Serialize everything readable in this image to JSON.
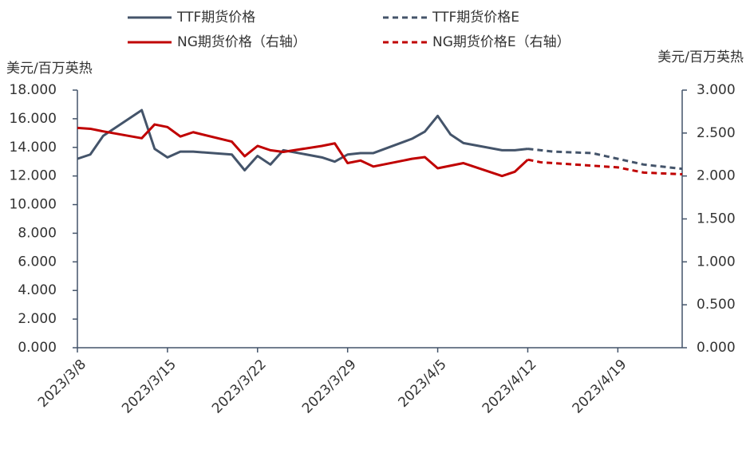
{
  "chart_data": {
    "type": "line",
    "y_label": "美元/百万英热",
    "y2_label": "美元/百万英热",
    "xlim": [
      "2023/3/8",
      "2023/4/24"
    ],
    "xticks": [
      "2023/3/8",
      "2023/3/15",
      "2023/3/22",
      "2023/3/29",
      "2023/4/5",
      "2023/4/12",
      "2023/4/19"
    ],
    "ylim": [
      0,
      18
    ],
    "yticks": [
      {
        "value": 0,
        "label": "0.000"
      },
      {
        "value": 2,
        "label": "2.000"
      },
      {
        "value": 4,
        "label": "4.000"
      },
      {
        "value": 6,
        "label": "6.000"
      },
      {
        "value": 8,
        "label": "8.000"
      },
      {
        "value": 10,
        "label": "10.000"
      },
      {
        "value": 12,
        "label": "12.000"
      },
      {
        "value": 14,
        "label": "14.000"
      },
      {
        "value": 16,
        "label": "16.000"
      },
      {
        "value": 18,
        "label": "18.000"
      }
    ],
    "y2lim": [
      0,
      3
    ],
    "y2ticks": [
      {
        "value": 0,
        "label": "0.000"
      },
      {
        "value": 0.5,
        "label": "0.500"
      },
      {
        "value": 1,
        "label": "1.000"
      },
      {
        "value": 1.5,
        "label": "1.500"
      },
      {
        "value": 2,
        "label": "2.000"
      },
      {
        "value": 2.5,
        "label": "2.500"
      },
      {
        "value": 3,
        "label": "3.000"
      }
    ],
    "series": [
      {
        "name": "TTF期货价格",
        "color": "#44546a",
        "line_style": "solid",
        "x": [
          "2023/3/8",
          "2023/3/9",
          "2023/3/10",
          "2023/3/13",
          "2023/3/14",
          "2023/3/15",
          "2023/3/16",
          "2023/3/17",
          "2023/3/20",
          "2023/3/21",
          "2023/3/22",
          "2023/3/23",
          "2023/3/24",
          "2023/3/27",
          "2023/3/28",
          "2023/3/29",
          "2023/3/30",
          "2023/3/31",
          "2023/4/3",
          "2023/4/4",
          "2023/4/5",
          "2023/4/6",
          "2023/4/7",
          "2023/4/10",
          "2023/4/11",
          "2023/4/12"
        ],
        "values": [
          13.2,
          13.5,
          14.8,
          16.6,
          13.9,
          13.3,
          13.7,
          13.7,
          13.5,
          12.4,
          13.4,
          12.8,
          13.8,
          13.3,
          13.0,
          13.5,
          13.6,
          13.6,
          14.6,
          15.1,
          16.2,
          14.9,
          14.3,
          13.8,
          13.8,
          13.9
        ]
      },
      {
        "name": "TTF期货价格E",
        "color": "#44546a",
        "line_style": "dashed",
        "x": [
          "2023/4/12",
          "2023/4/13",
          "2023/4/14",
          "2023/4/17",
          "2023/4/18",
          "2023/4/19",
          "2023/4/20",
          "2023/4/21",
          "2023/4/24"
        ],
        "values": [
          13.9,
          13.8,
          13.7,
          13.6,
          13.4,
          13.2,
          13.0,
          12.8,
          12.5
        ]
      },
      {
        "name": "NG期货价格（右轴）",
        "color": "#c00000",
        "line_style": "solid",
        "axis": "y2",
        "x": [
          "2023/3/8",
          "2023/3/9",
          "2023/3/10",
          "2023/3/13",
          "2023/3/14",
          "2023/3/15",
          "2023/3/16",
          "2023/3/17",
          "2023/3/20",
          "2023/3/21",
          "2023/3/22",
          "2023/3/23",
          "2023/3/24",
          "2023/3/27",
          "2023/3/28",
          "2023/3/29",
          "2023/3/30",
          "2023/3/31",
          "2023/4/3",
          "2023/4/4",
          "2023/4/5",
          "2023/4/6",
          "2023/4/7",
          "2023/4/10",
          "2023/4/11",
          "2023/4/12"
        ],
        "values": [
          2.56,
          2.55,
          2.52,
          2.44,
          2.6,
          2.57,
          2.46,
          2.51,
          2.4,
          2.23,
          2.35,
          2.3,
          2.28,
          2.35,
          2.38,
          2.15,
          2.18,
          2.11,
          2.2,
          2.22,
          2.09,
          2.12,
          2.15,
          2.0,
          2.05,
          2.19
        ]
      },
      {
        "name": "NG期货价格E（右轴）",
        "color": "#c00000",
        "line_style": "dashed",
        "axis": "y2",
        "x": [
          "2023/4/12",
          "2023/4/13",
          "2023/4/14",
          "2023/4/17",
          "2023/4/18",
          "2023/4/19",
          "2023/4/20",
          "2023/4/21",
          "2023/4/24"
        ],
        "values": [
          2.19,
          2.16,
          2.15,
          2.12,
          2.11,
          2.1,
          2.07,
          2.04,
          2.02
        ]
      }
    ]
  }
}
